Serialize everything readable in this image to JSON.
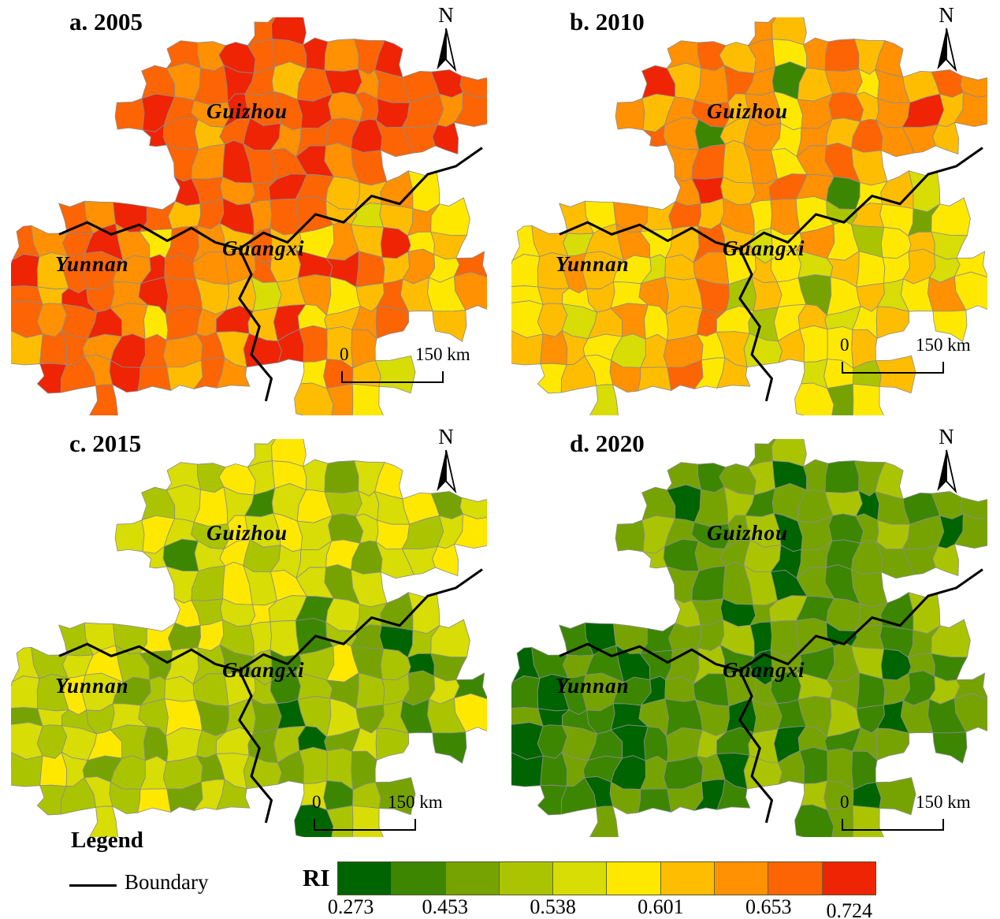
{
  "common": {
    "north_label": "N",
    "scale_zero": "0",
    "scale_max": "150 km"
  },
  "panels": [
    {
      "id": "a",
      "title": "a. 2005",
      "labels": {
        "guizhou": "Guizhou",
        "yunnan": "Yunnan",
        "guangxi": "Guangxi"
      },
      "region_color_indices": {
        "guizhou": [
          8,
          9,
          8,
          7,
          9,
          8,
          8,
          9,
          7,
          8,
          9,
          8,
          7,
          8,
          9,
          8,
          6,
          8,
          9,
          7,
          8,
          8,
          9,
          8
        ],
        "yunnan": [
          8,
          7,
          9,
          8,
          6,
          8,
          7,
          8,
          9,
          7,
          5,
          8,
          7,
          9,
          6,
          8,
          8,
          7,
          9,
          8,
          7,
          8,
          6,
          9
        ],
        "guangxi": [
          6,
          7,
          5,
          8,
          6,
          4,
          6,
          7,
          5,
          6,
          8,
          6,
          5,
          7,
          6,
          9,
          5,
          6,
          7,
          8,
          6,
          9,
          9,
          8
        ]
      }
    },
    {
      "id": "b",
      "title": "b. 2010",
      "labels": {
        "guizhou": "Guizhou",
        "yunnan": "Yunnan",
        "guangxi": "Guangxi"
      },
      "region_color_indices": {
        "guizhou": [
          7,
          6,
          7,
          8,
          6,
          7,
          5,
          7,
          8,
          6,
          7,
          9,
          6,
          7,
          8,
          7,
          1,
          6,
          7,
          5,
          7,
          6,
          8,
          7
        ],
        "yunnan": [
          6,
          5,
          7,
          6,
          8,
          5,
          6,
          4,
          6,
          7,
          5,
          6,
          8,
          5,
          6,
          7,
          6,
          5,
          4,
          6,
          7,
          5,
          6,
          5
        ],
        "guangxi": [
          5,
          6,
          4,
          5,
          3,
          6,
          5,
          2,
          5,
          6,
          4,
          5,
          7,
          5,
          3,
          5,
          6,
          4,
          5,
          6,
          5,
          4,
          6,
          5
        ]
      }
    },
    {
      "id": "c",
      "title": "c. 2015",
      "labels": {
        "guizhou": "Guizhou",
        "yunnan": "Yunnan",
        "guangxi": "Guangxi"
      },
      "region_color_indices": {
        "guizhou": [
          4,
          5,
          4,
          3,
          5,
          4,
          5,
          4,
          2,
          4,
          5,
          3,
          4,
          5,
          4,
          1,
          4,
          5,
          3,
          4,
          4,
          5,
          2,
          4
        ],
        "yunnan": [
          3,
          4,
          3,
          5,
          2,
          4,
          3,
          4,
          5,
          3,
          2,
          4,
          3,
          4,
          3,
          5,
          4,
          2,
          3,
          4,
          3,
          2,
          4,
          3
        ],
        "guangxi": [
          3,
          2,
          4,
          1,
          3,
          2,
          0,
          3,
          4,
          2,
          3,
          1,
          3,
          5,
          2,
          3,
          0,
          2,
          4,
          3,
          1,
          3,
          2,
          3
        ]
      }
    },
    {
      "id": "d",
      "title": "d. 2020",
      "labels": {
        "guizhou": "Guizhou",
        "yunnan": "Yunnan",
        "guangxi": "Guangxi"
      },
      "region_color_indices": {
        "guizhou": [
          2,
          3,
          2,
          1,
          2,
          3,
          0,
          2,
          1,
          2,
          3,
          2,
          0,
          2,
          3,
          1,
          2,
          2,
          3,
          0,
          2,
          1,
          2,
          2
        ],
        "yunnan": [
          1,
          0,
          2,
          1,
          2,
          0,
          1,
          2,
          1,
          0,
          1,
          2,
          3,
          1,
          0,
          1,
          2,
          1,
          0,
          2,
          1,
          2,
          0,
          1
        ],
        "guangxi": [
          2,
          1,
          3,
          2,
          0,
          2,
          1,
          2,
          3,
          1,
          0,
          2,
          1,
          2,
          3,
          0,
          2,
          1,
          2,
          2,
          1,
          3,
          2,
          1
        ]
      }
    }
  ],
  "legend": {
    "heading": "Legend",
    "boundary_label": "Boundary",
    "ramp_title": "RI",
    "ramp_colors": [
      "#006400",
      "#3c8601",
      "#76a302",
      "#abc402",
      "#d7dd05",
      "#ffe800",
      "#ffbd02",
      "#ff9102",
      "#fc6404",
      "#ee2405"
    ],
    "tick_labels": [
      "0.273",
      "0.453",
      "0.538",
      "0.601",
      "0.653",
      "0.724"
    ],
    "boundary_color": "#000000",
    "county_line_color": "#8c8c8c"
  }
}
